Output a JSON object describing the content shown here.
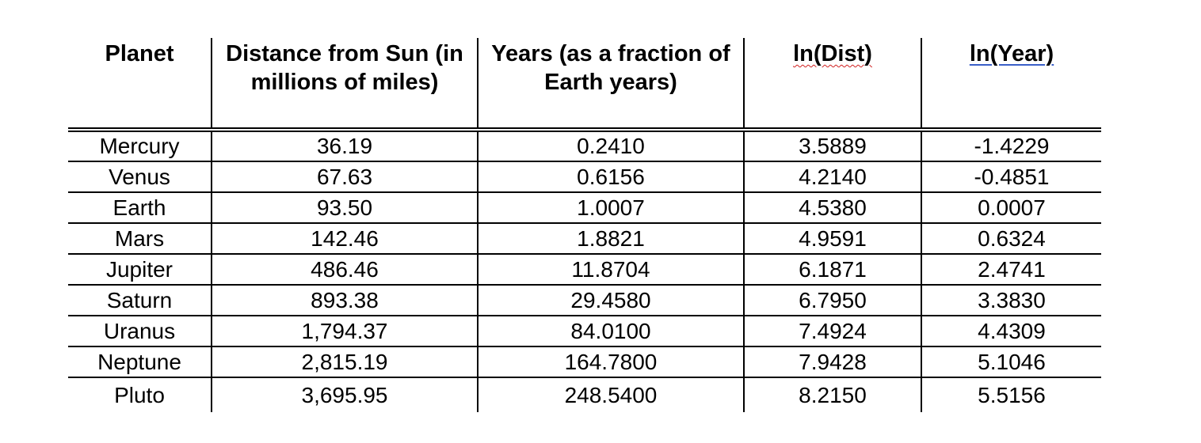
{
  "table": {
    "headers": [
      "Planet",
      "Distance from Sun (in millions of miles)",
      "Years (as a fraction of Earth years)",
      "ln(Dist)",
      "ln(Year)"
    ],
    "rows": [
      [
        "Mercury",
        "36.19",
        "0.2410",
        "3.5889",
        "-1.4229"
      ],
      [
        "Venus",
        "67.63",
        "0.6156",
        "4.2140",
        "-0.4851"
      ],
      [
        "Earth",
        "93.50",
        "1.0007",
        "4.5380",
        "0.0007"
      ],
      [
        "Mars",
        "142.46",
        "1.8821",
        "4.9591",
        "0.6324"
      ],
      [
        "Jupiter",
        "486.46",
        "11.8704",
        "6.1871",
        "2.4741"
      ],
      [
        "Saturn",
        "893.38",
        "29.4580",
        "6.7950",
        "3.3830"
      ],
      [
        "Uranus",
        "1,794.37",
        "84.0100",
        "7.4924",
        "4.4309"
      ],
      [
        "Neptune",
        "2,815.19",
        "164.7800",
        "7.9428",
        "5.1046"
      ],
      [
        "Pluto",
        "3,695.95",
        "248.5400",
        "8.2150",
        "5.5156"
      ]
    ]
  },
  "colors": {
    "spellcheck_blue": "#3a5fc8",
    "spellcheck_red": "#d02020"
  }
}
